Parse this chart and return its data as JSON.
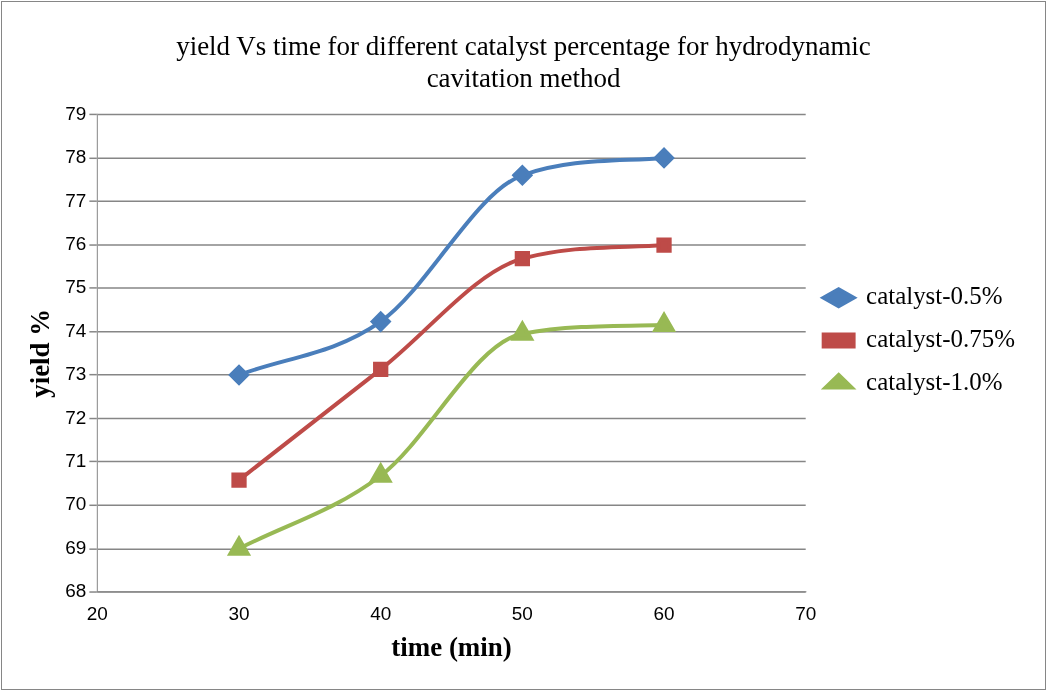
{
  "chart_data": {
    "type": "line",
    "title": "yield Vs time for different catalyst percentage for hydrodynamic cavitation method",
    "xlabel": "time (min)",
    "ylabel": "yield %",
    "x": [
      30,
      40,
      50,
      60
    ],
    "xlim": [
      20,
      70
    ],
    "xticks": [
      20,
      30,
      40,
      50,
      60,
      70
    ],
    "ylim": [
      68,
      79
    ],
    "yticks": [
      68,
      69,
      70,
      71,
      72,
      73,
      74,
      75,
      76,
      77,
      78,
      79
    ],
    "grid": "y",
    "legend": "right",
    "series": [
      {
        "name": "catalyst-0.5%",
        "color": "#4a7ebb",
        "marker": "diamond",
        "values": [
          73.0,
          74.23,
          77.6,
          78.0
        ]
      },
      {
        "name": "catalyst-0.75%",
        "color": "#be4b48",
        "marker": "square",
        "values": [
          70.58,
          73.13,
          75.68,
          75.99
        ]
      },
      {
        "name": "catalyst-1.0%",
        "color": "#98b954",
        "marker": "triangle",
        "values": [
          69.0,
          70.68,
          73.95,
          74.15
        ]
      }
    ]
  }
}
